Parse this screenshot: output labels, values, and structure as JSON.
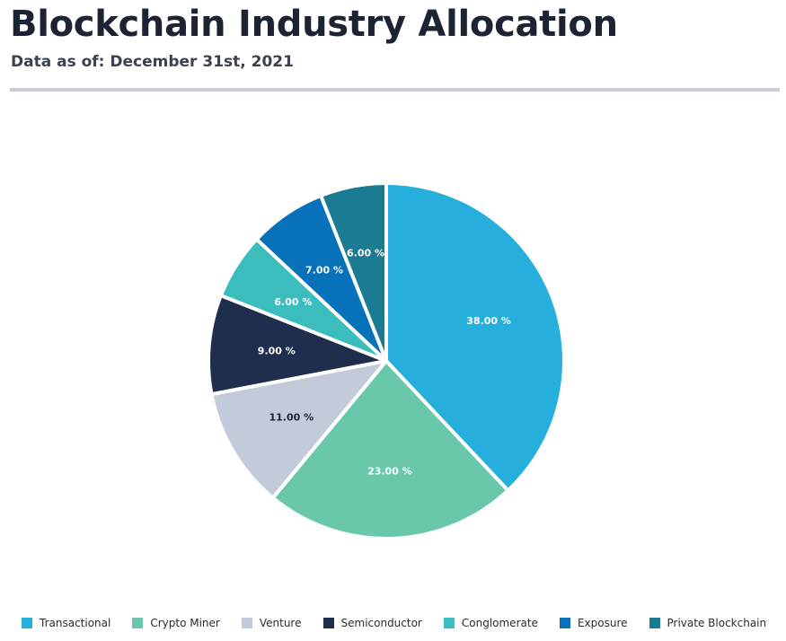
{
  "header": {
    "title": "Blockchain Industry Allocation",
    "subtitle": "Data as of: December 31st, 2021"
  },
  "chart_data": {
    "type": "pie",
    "title": "Blockchain Industry Allocation",
    "value_suffix": " %",
    "legend_position": "bottom",
    "start_angle_deg": 0,
    "direction": "clockwise",
    "slices": [
      {
        "label": "Transactional",
        "value": 38.0,
        "display": "38.00 %",
        "color": "#26aedd",
        "label_color": "#ffffff"
      },
      {
        "label": "Crypto Miner",
        "value": 23.0,
        "display": "23.00 %",
        "color": "#69c7ab",
        "label_color": "#ffffff"
      },
      {
        "label": "Venture",
        "value": 11.0,
        "display": "11.00 %",
        "color": "#c3cada",
        "label_color": "#1c2433"
      },
      {
        "label": "Semiconductor",
        "value": 9.0,
        "display": "9.00 %",
        "color": "#202e4d",
        "label_color": "#ffffff"
      },
      {
        "label": "Conglomerate",
        "value": 6.0,
        "display": "6.00 %",
        "color": "#3bbdbd",
        "label_color": "#ffffff"
      },
      {
        "label": "Exposure",
        "value": 7.0,
        "display": "7.00 %",
        "color": "#0772ba",
        "label_color": "#ffffff"
      },
      {
        "label": "Private Blockchain",
        "value": 6.0,
        "display": "6.00 %",
        "color": "#1a7b92",
        "label_color": "#ffffff"
      }
    ]
  }
}
